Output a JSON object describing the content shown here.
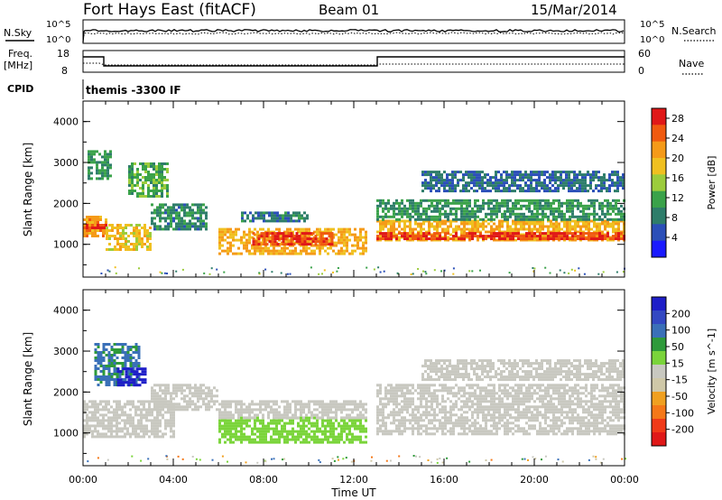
{
  "header": {
    "station": "Fort Hays East (fitACF)",
    "beam": "Beam 01",
    "date": "15/Mar/2014"
  },
  "top_panels": {
    "nsky_label": "N.Sky",
    "nsearch_label": "N.Search",
    "freq_label_line1": "Freq.",
    "freq_label_line2": "[MHz]",
    "nave_label": "Nave",
    "cpid_label": "CPID",
    "cpid_text": "themis -3300 IF",
    "noise_ticks": [
      "10^5",
      "10^0"
    ],
    "freq_ticks": [
      "18",
      "8"
    ],
    "nave_ticks": [
      "60",
      "0"
    ]
  },
  "colors": {
    "power_scale": [
      "#1a1aff",
      "#2b4fb8",
      "#2e7d6a",
      "#3aa24a",
      "#9ccc3c",
      "#f0c020",
      "#f59a18",
      "#f05a10",
      "#e01818"
    ],
    "velocity_scale": [
      "#1e1ec8",
      "#3348c2",
      "#3a70b8",
      "#2e9a3a",
      "#7ad43a",
      "#c8c8c0",
      "#cfc8a8",
      "#f0a020",
      "#f57818",
      "#f03a18",
      "#e01818"
    ]
  },
  "chart_data": [
    {
      "type": "heatmap",
      "panel": "power",
      "xlabel": "",
      "ylabel": "Slant Range [km]",
      "yticks": [
        "1000",
        "2000",
        "3000",
        "4000"
      ],
      "ylim": [
        200,
        4500
      ],
      "colorbar_label": "Power [dB]",
      "colorbar_ticks": [
        "4",
        "8",
        "12",
        "16",
        "20",
        "24",
        "28"
      ],
      "colorbar_range": [
        0,
        30
      ],
      "regions": [
        {
          "t0": 0.0,
          "t1": 1.0,
          "r0": 1200,
          "r1": 1700,
          "level": 22
        },
        {
          "t0": 0.0,
          "t1": 1.0,
          "r0": 1400,
          "r1": 1500,
          "level": 28
        },
        {
          "t0": 0.2,
          "t1": 1.2,
          "r0": 2600,
          "r1": 3300,
          "level": 10
        },
        {
          "t0": 2.0,
          "t1": 3.8,
          "r0": 2200,
          "r1": 3000,
          "level": 12
        },
        {
          "t0": 1.0,
          "t1": 3.0,
          "r0": 900,
          "r1": 1500,
          "level": 18
        },
        {
          "t0": 3.0,
          "t1": 5.5,
          "r0": 1400,
          "r1": 2000,
          "level": 9
        },
        {
          "t0": 6.0,
          "t1": 12.5,
          "r0": 800,
          "r1": 1400,
          "level": 20
        },
        {
          "t0": 7.5,
          "t1": 11.0,
          "r0": 1000,
          "r1": 1300,
          "level": 26
        },
        {
          "t0": 7.0,
          "t1": 10.0,
          "r0": 1600,
          "r1": 1800,
          "level": 8
        },
        {
          "t0": 13.0,
          "t1": 24.0,
          "r0": 1100,
          "r1": 1600,
          "level": 20
        },
        {
          "t0": 13.0,
          "t1": 24.0,
          "r0": 1150,
          "r1": 1300,
          "level": 27
        },
        {
          "t0": 13.0,
          "t1": 24.0,
          "r0": 1600,
          "r1": 2100,
          "level": 10
        },
        {
          "t0": 15.0,
          "t1": 24.0,
          "r0": 2300,
          "r1": 2800,
          "level": 7
        }
      ]
    },
    {
      "type": "heatmap",
      "panel": "velocity",
      "xlabel": "Time UT",
      "ylabel": "Slant Range [km]",
      "xticks": [
        "00:00",
        "04:00",
        "08:00",
        "12:00",
        "16:00",
        "20:00",
        "00:00"
      ],
      "xlim": [
        0,
        24
      ],
      "yticks": [
        "1000",
        "2000",
        "3000",
        "4000"
      ],
      "ylim": [
        200,
        4500
      ],
      "colorbar_label": "Velocity [m s^-1]",
      "colorbar_ticks": [
        "200",
        "100",
        "50",
        "15",
        "-15",
        "-50",
        "-100",
        "-200"
      ],
      "colorbar_range": [
        -250,
        250
      ],
      "regions": [
        {
          "t0": 0.0,
          "t1": 4.0,
          "r0": 900,
          "r1": 1800,
          "level": 0
        },
        {
          "t0": 0.5,
          "t1": 2.5,
          "r0": 2200,
          "r1": 3200,
          "level": 120
        },
        {
          "t0": 1.5,
          "t1": 2.8,
          "r0": 2200,
          "r1": 2600,
          "level": 220
        },
        {
          "t0": 3.0,
          "t1": 6.0,
          "r0": 1600,
          "r1": 2200,
          "level": 0
        },
        {
          "t0": 6.0,
          "t1": 12.5,
          "r0": 800,
          "r1": 1400,
          "level": 40
        },
        {
          "t0": 6.0,
          "t1": 12.5,
          "r0": 1400,
          "r1": 1800,
          "level": 0
        },
        {
          "t0": 13.0,
          "t1": 24.0,
          "r0": 1000,
          "r1": 2200,
          "level": 0
        },
        {
          "t0": 15.0,
          "t1": 24.0,
          "r0": 2300,
          "r1": 2800,
          "level": 0
        }
      ]
    }
  ]
}
